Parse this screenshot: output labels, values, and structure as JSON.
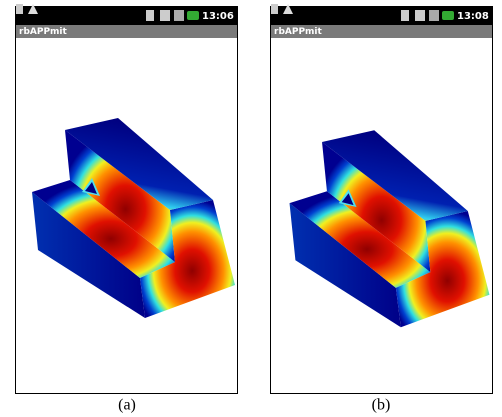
{
  "panels": [
    {
      "time": "13:06",
      "app_title": "rbAPPmit",
      "caption": "(a)"
    },
    {
      "time": "13:08",
      "app_title": "rbAPPmit",
      "caption": "(b)"
    }
  ]
}
